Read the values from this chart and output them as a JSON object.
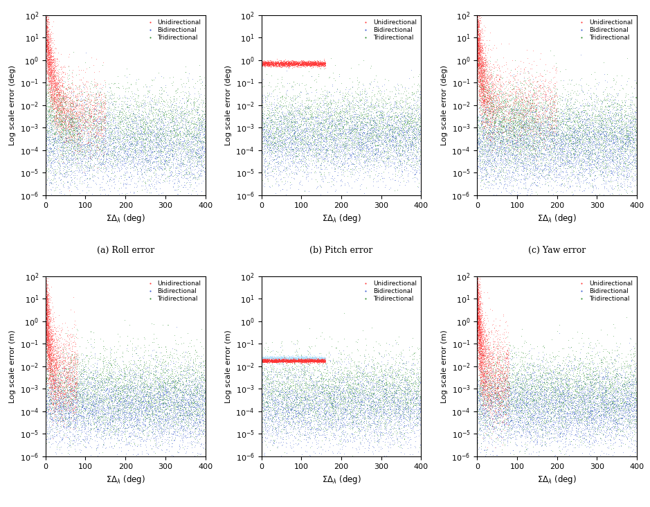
{
  "colors": {
    "uni": "#FF3333",
    "bi": "#3355CC",
    "tri": "#228B22"
  },
  "xlim": [
    0,
    400
  ],
  "ylim": [
    1e-06,
    100.0
  ],
  "seed": 42,
  "marker_size": 1.2,
  "alpha": 0.6
}
